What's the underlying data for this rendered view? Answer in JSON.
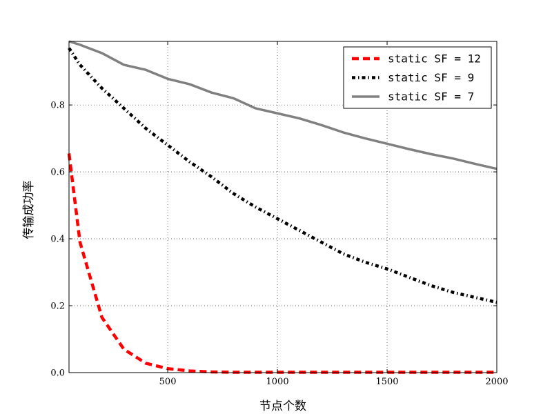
{
  "chart_data": {
    "type": "line",
    "title": "",
    "xlabel": "节点个数",
    "ylabel": "传输成功率",
    "xlim": [
      50,
      2000
    ],
    "ylim": [
      0,
      0.99
    ],
    "xticks": [
      500,
      1000,
      1500,
      2000
    ],
    "yticks": [
      0.0,
      0.2,
      0.4,
      0.6,
      0.8
    ],
    "xtick_labels": [
      "500",
      "1000",
      "1500",
      "2000"
    ],
    "ytick_labels": [
      "0.0",
      "0.2",
      "0.4",
      "0.6",
      "0.8"
    ],
    "grid": true,
    "legend_position": "top-right",
    "series": [
      {
        "name": "static SF = 12",
        "color": "#ff0000",
        "style": "dashed",
        "x": [
          50,
          100,
          200,
          300,
          400,
          500,
          600,
          700,
          800,
          900,
          1000,
          1100,
          1200,
          1300,
          1400,
          1500,
          1600,
          1700,
          1800,
          1900,
          2000
        ],
        "y": [
          0.655,
          0.39,
          0.165,
          0.07,
          0.028,
          0.012,
          0.005,
          0.002,
          0.001,
          0.001,
          0.001,
          0.001,
          0.001,
          0.001,
          0.001,
          0.001,
          0.001,
          0.001,
          0.001,
          0.001,
          0.001
        ]
      },
      {
        "name": "static SF = 9",
        "color": "#000000",
        "style": "dashdot",
        "x": [
          50,
          100,
          200,
          300,
          400,
          500,
          600,
          700,
          800,
          900,
          1000,
          1100,
          1200,
          1300,
          1400,
          1500,
          1600,
          1700,
          1800,
          1900,
          2000
        ],
        "y": [
          0.97,
          0.92,
          0.85,
          0.79,
          0.73,
          0.68,
          0.63,
          0.585,
          0.535,
          0.495,
          0.46,
          0.425,
          0.39,
          0.355,
          0.33,
          0.31,
          0.285,
          0.26,
          0.24,
          0.225,
          0.21
        ]
      },
      {
        "name": "static SF = 7",
        "color": "#808080",
        "style": "solid",
        "x": [
          50,
          100,
          200,
          300,
          400,
          500,
          600,
          700,
          800,
          900,
          1000,
          1100,
          1200,
          1300,
          1400,
          1500,
          1600,
          1700,
          1800,
          1900,
          2000
        ],
        "y": [
          0.99,
          0.98,
          0.955,
          0.92,
          0.905,
          0.878,
          0.862,
          0.837,
          0.82,
          0.79,
          0.775,
          0.76,
          0.74,
          0.718,
          0.7,
          0.684,
          0.668,
          0.653,
          0.64,
          0.624,
          0.609
        ]
      }
    ]
  }
}
